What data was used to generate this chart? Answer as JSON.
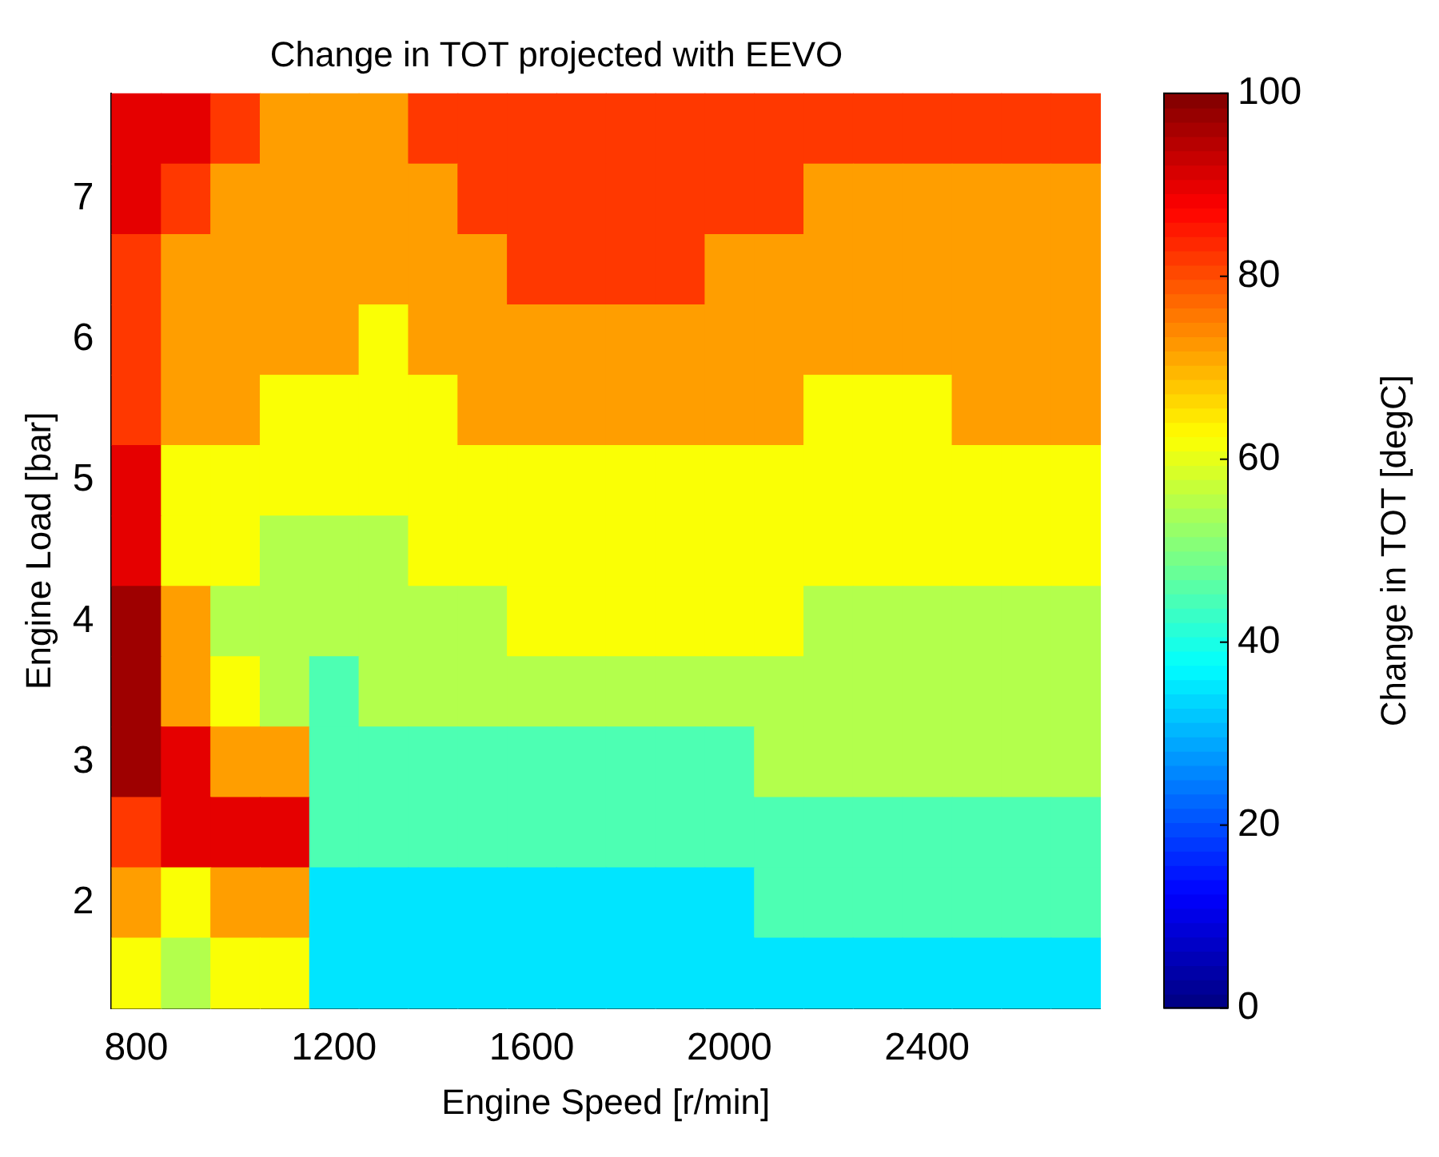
{
  "chart_data": {
    "type": "heatmap",
    "title": "Change in TOT projected with EEVO",
    "xlabel": "Engine Speed [r/min]",
    "ylabel": "Engine Load [bar]",
    "clabel": "Change in TOT [degC]",
    "categories": [
      "800",
      null,
      null,
      null,
      "1200",
      null,
      null,
      null,
      "1600",
      null,
      null,
      null,
      "2000",
      null,
      null,
      null,
      "2400",
      null,
      null,
      null
    ],
    "y_categories": [
      null,
      "7",
      null,
      "6",
      null,
      "5",
      null,
      "4",
      null,
      "3",
      null,
      "2",
      null
    ],
    "cells": [
      [
        90,
        90,
        82,
        72,
        72,
        72,
        82,
        82,
        82,
        82,
        82,
        82,
        82,
        82,
        82,
        82,
        82,
        82,
        82,
        82
      ],
      [
        90,
        82,
        72,
        72,
        72,
        72,
        72,
        82,
        82,
        82,
        82,
        82,
        82,
        82,
        72,
        72,
        72,
        72,
        72,
        72
      ],
      [
        82,
        72,
        72,
        72,
        72,
        72,
        72,
        72,
        82,
        82,
        82,
        82,
        72,
        72,
        72,
        72,
        72,
        72,
        72,
        72
      ],
      [
        82,
        72,
        72,
        72,
        72,
        62,
        72,
        72,
        72,
        72,
        72,
        72,
        72,
        72,
        72,
        72,
        72,
        72,
        72,
        72
      ],
      [
        82,
        72,
        72,
        62,
        62,
        62,
        62,
        72,
        72,
        72,
        72,
        72,
        72,
        72,
        62,
        62,
        62,
        72,
        72,
        72
      ],
      [
        90,
        62,
        62,
        62,
        62,
        62,
        62,
        62,
        62,
        62,
        62,
        62,
        62,
        62,
        62,
        62,
        62,
        62,
        62,
        62
      ],
      [
        90,
        62,
        62,
        55,
        55,
        55,
        62,
        62,
        62,
        62,
        62,
        62,
        62,
        62,
        62,
        62,
        62,
        62,
        62,
        62
      ],
      [
        97,
        72,
        55,
        55,
        55,
        55,
        55,
        55,
        62,
        62,
        62,
        62,
        62,
        62,
        55,
        55,
        55,
        55,
        55,
        55
      ],
      [
        97,
        72,
        62,
        55,
        45,
        55,
        55,
        55,
        55,
        55,
        55,
        55,
        55,
        55,
        55,
        55,
        55,
        55,
        55,
        55
      ],
      [
        97,
        90,
        72,
        72,
        45,
        45,
        45,
        45,
        45,
        45,
        45,
        45,
        45,
        55,
        55,
        55,
        55,
        55,
        55,
        55
      ],
      [
        82,
        90,
        90,
        90,
        45,
        45,
        45,
        45,
        45,
        45,
        45,
        45,
        45,
        45,
        45,
        45,
        45,
        45,
        45,
        45
      ],
      [
        72,
        62,
        72,
        72,
        35,
        35,
        35,
        35,
        35,
        35,
        35,
        35,
        35,
        45,
        45,
        45,
        45,
        45,
        45,
        45
      ],
      [
        62,
        55,
        62,
        62,
        35,
        35,
        35,
        35,
        35,
        35,
        35,
        35,
        35,
        35,
        35,
        35,
        35,
        35,
        35,
        35
      ]
    ],
    "clim": [
      0,
      100
    ],
    "cticks": [
      0,
      20,
      40,
      60,
      80,
      100
    ],
    "grid": false
  }
}
